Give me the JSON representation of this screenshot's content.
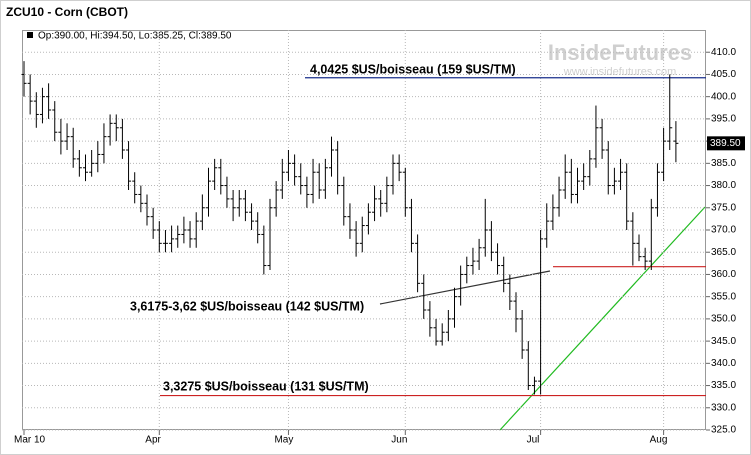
{
  "chart_data": {
    "type": "ohlc",
    "title": "ZCU10 - Corn (CBOT)",
    "ohlc_label": "Op:390.00, Hi:394.50, Lo:385.25, Cl:389.50",
    "watermark": "InsideFutures",
    "watermark_url": "www.insidefutures.com",
    "color": "#000000",
    "grid": true,
    "categories": [
      "Mar 10",
      null,
      null,
      null,
      null,
      null,
      null,
      null,
      null,
      null,
      null,
      null,
      null,
      null,
      null,
      null,
      null,
      null,
      null,
      null,
      null,
      null,
      "Apr",
      null,
      null,
      null,
      null,
      null,
      null,
      null,
      null,
      null,
      null,
      null,
      null,
      null,
      null,
      null,
      null,
      null,
      null,
      null,
      null,
      "May",
      null,
      null,
      null,
      null,
      null,
      null,
      null,
      null,
      null,
      null,
      null,
      null,
      null,
      null,
      null,
      null,
      null,
      null,
      "Jun",
      null,
      null,
      null,
      null,
      null,
      null,
      null,
      null,
      null,
      null,
      null,
      null,
      null,
      null,
      null,
      null,
      null,
      null,
      null,
      null,
      null,
      "Jul",
      null,
      null,
      null,
      null,
      null,
      null,
      null,
      null,
      null,
      null,
      null,
      null,
      null,
      null,
      null,
      null,
      null,
      null,
      null,
      "Aug",
      null,
      null
    ],
    "open": [
      405,
      403,
      399,
      396,
      400,
      397,
      392,
      390,
      391,
      386,
      384,
      383,
      385,
      387,
      391,
      394,
      393,
      388,
      381,
      378,
      376,
      373,
      370,
      367,
      367,
      368,
      369,
      370,
      368,
      372,
      375,
      381,
      384,
      380,
      377,
      375,
      377,
      374,
      372,
      369,
      362,
      375,
      379,
      383,
      385,
      382,
      380,
      378,
      383,
      379,
      384,
      388,
      380,
      373,
      370,
      367,
      371,
      374,
      377,
      376,
      380,
      385,
      383,
      375,
      367,
      358,
      352,
      348,
      345,
      347,
      350,
      355,
      360,
      362,
      363,
      366,
      370,
      365,
      362,
      358,
      354,
      350,
      343,
      335,
      336,
      368,
      372,
      375,
      379,
      383,
      378,
      381,
      382,
      386,
      393,
      388,
      380,
      381,
      383,
      372,
      367,
      364,
      363,
      375,
      383,
      390,
      390
    ],
    "high": [
      408,
      405,
      401,
      402,
      403,
      399,
      395,
      394,
      393,
      388,
      387,
      388,
      390,
      394,
      396,
      396,
      395,
      390,
      383,
      380,
      378,
      375,
      372,
      370,
      371,
      371,
      373,
      372,
      374,
      378,
      384,
      386,
      386,
      382,
      379,
      379,
      379,
      376,
      374,
      371,
      377,
      381,
      386,
      388,
      387,
      385,
      382,
      386,
      385,
      386,
      391,
      390,
      382,
      376,
      372,
      373,
      376,
      380,
      379,
      382,
      387,
      387,
      384,
      377,
      369,
      360,
      354,
      350,
      349,
      352,
      357,
      362,
      364,
      366,
      368,
      377,
      372,
      367,
      364,
      360,
      356,
      352,
      345,
      337,
      370,
      376,
      378,
      382,
      387,
      386,
      384,
      385,
      388,
      398,
      395,
      390,
      384,
      386,
      385,
      374,
      369,
      366,
      377,
      385,
      393,
      405,
      394.5
    ],
    "low": [
      400,
      396,
      393,
      394,
      395,
      390,
      387,
      388,
      384,
      382,
      381,
      382,
      383,
      385,
      389,
      390,
      386,
      379,
      376,
      374,
      371,
      368,
      365,
      365,
      365,
      366,
      367,
      366,
      366,
      370,
      373,
      379,
      378,
      375,
      372,
      373,
      372,
      370,
      367,
      360,
      361,
      373,
      377,
      381,
      380,
      378,
      375,
      376,
      377,
      377,
      382,
      378,
      371,
      368,
      364,
      365,
      369,
      372,
      373,
      374,
      378,
      381,
      373,
      365,
      356,
      350,
      346,
      344,
      344,
      345,
      348,
      353,
      358,
      360,
      361,
      364,
      363,
      360,
      356,
      352,
      347,
      341,
      334,
      333,
      333,
      366,
      370,
      373,
      377,
      376,
      376,
      379,
      380,
      384,
      386,
      378,
      378,
      379,
      370,
      362,
      363,
      361,
      361,
      373,
      381,
      388,
      385.25
    ],
    "close": [
      403,
      399,
      396,
      400,
      397,
      392,
      390,
      391,
      386,
      384,
      383,
      385,
      387,
      391,
      394,
      393,
      388,
      381,
      378,
      376,
      373,
      370,
      367,
      367,
      368,
      369,
      370,
      368,
      372,
      375,
      381,
      384,
      380,
      377,
      375,
      377,
      374,
      372,
      369,
      362,
      375,
      379,
      383,
      385,
      382,
      380,
      378,
      383,
      379,
      384,
      388,
      380,
      373,
      370,
      367,
      371,
      374,
      377,
      376,
      380,
      385,
      383,
      375,
      367,
      358,
      352,
      348,
      345,
      347,
      350,
      355,
      360,
      362,
      363,
      366,
      370,
      365,
      362,
      358,
      354,
      350,
      343,
      335,
      336,
      368,
      372,
      375,
      379,
      383,
      378,
      381,
      382,
      386,
      393,
      388,
      380,
      381,
      383,
      372,
      367,
      364,
      363,
      375,
      383,
      390,
      393,
      389.5
    ],
    "last_label": "389.50",
    "ylim": [
      325,
      415
    ],
    "yticks": [
      {
        "value": 325,
        "label": "325.0"
      },
      {
        "value": 330,
        "label": "330.0"
      },
      {
        "value": 335,
        "label": "335.0"
      },
      {
        "value": 340,
        "label": "340.0"
      },
      {
        "value": 345,
        "label": "345.0"
      },
      {
        "value": 350,
        "label": "350.0"
      },
      {
        "value": 355,
        "label": "355.0"
      },
      {
        "value": 360,
        "label": "360.0"
      },
      {
        "value": 365,
        "label": "365.0"
      },
      {
        "value": 370,
        "label": "370.0"
      },
      {
        "value": 375,
        "label": "375.0"
      },
      {
        "value": 380,
        "label": "380.0"
      },
      {
        "value": 385,
        "label": "385.0"
      },
      {
        "value": 390,
        "label": "390.0"
      },
      {
        "value": 395,
        "label": "395.0"
      },
      {
        "value": 400,
        "label": "400.0"
      },
      {
        "value": 405,
        "label": "405.0"
      },
      {
        "value": 410,
        "label": "410.0"
      }
    ],
    "levels": [
      {
        "label": "4,0425 $US/boisseau (159 $US/TM)",
        "value": 404.25,
        "color": "#1a2f8c"
      },
      {
        "label": "3,6175-3,62 $US/boisseau (142 $US/TM)",
        "value": 361.75,
        "color": "#cc2222"
      },
      {
        "label": "3,3275 $US/boisseau (131 $US/TM)",
        "value": 332.75,
        "color": "#cc2222"
      }
    ]
  }
}
